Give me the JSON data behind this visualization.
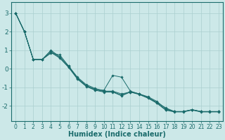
{
  "xlabel": "Humidex (Indice chaleur)",
  "ylabel": "",
  "xlim": [
    -0.5,
    23.5
  ],
  "ylim": [
    -2.8,
    3.6
  ],
  "background_color": "#cce8e8",
  "grid_color": "#aacfcf",
  "line_color": "#1a6b6b",
  "series": [
    [
      3.0,
      2.0,
      0.5,
      0.5,
      0.85,
      0.75,
      0.15,
      -0.45,
      -0.85,
      -1.05,
      -1.2,
      -1.2,
      -1.35,
      -1.25,
      -1.35,
      -1.5,
      -1.75,
      -2.15,
      -2.3,
      -2.3,
      -2.2,
      -2.3,
      -2.3,
      -2.3
    ],
    [
      3.0,
      2.0,
      0.5,
      0.5,
      1.0,
      0.65,
      0.15,
      -0.5,
      -0.9,
      -1.1,
      -1.15,
      -0.35,
      -0.45,
      -1.2,
      -1.35,
      -1.55,
      -1.8,
      -2.1,
      -2.3,
      -2.3,
      -2.2,
      -2.3,
      -2.3,
      -2.3
    ],
    [
      3.0,
      2.0,
      0.5,
      0.5,
      0.95,
      0.6,
      0.1,
      -0.52,
      -0.92,
      -1.12,
      -1.22,
      -1.22,
      -1.42,
      -1.22,
      -1.35,
      -1.55,
      -1.82,
      -2.2,
      -2.3,
      -2.3,
      -2.2,
      -2.3,
      -2.3,
      -2.3
    ],
    [
      3.0,
      2.0,
      0.5,
      0.5,
      0.88,
      0.58,
      0.08,
      -0.55,
      -0.95,
      -1.15,
      -1.25,
      -1.25,
      -1.45,
      -1.25,
      -1.38,
      -1.58,
      -1.85,
      -2.22,
      -2.32,
      -2.32,
      -2.22,
      -2.32,
      -2.32,
      -2.32
    ]
  ],
  "xtick_fontsize": 5.5,
  "ytick_fontsize": 6.5,
  "xlabel_fontsize": 7,
  "marker": "D",
  "marker_size": 1.8,
  "linewidth": 0.7
}
